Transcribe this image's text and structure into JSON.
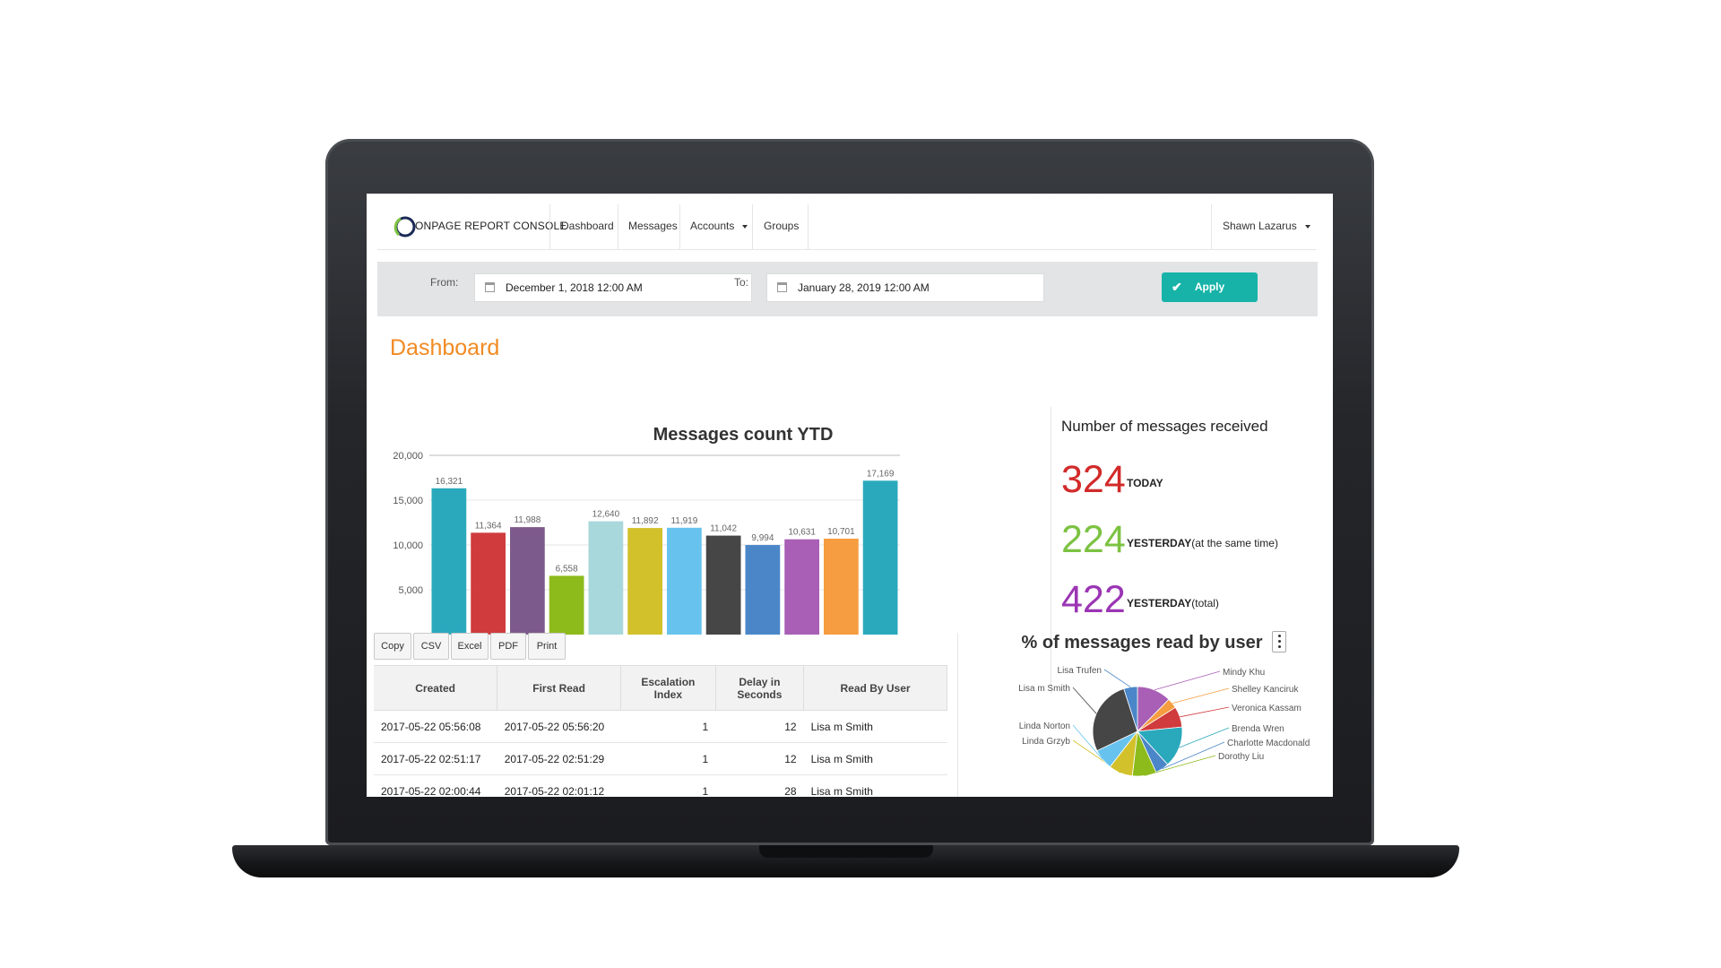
{
  "navbar": {
    "brand": "ONPAGE REPORT CONSOLE",
    "items": [
      "Dashboard",
      "Messages",
      "Accounts",
      "Groups"
    ],
    "user": "Shawn Lazarus"
  },
  "filter": {
    "from_label": "From:",
    "from_value": "December 1, 2018 12:00 AM",
    "to_label": "To:",
    "to_value": "January 28, 2019 12:00 AM",
    "apply_label": "Apply"
  },
  "page_title": "Dashboard",
  "chart_data": [
    {
      "type": "bar",
      "title": "Messages count YTD",
      "ylim": [
        0,
        20000
      ],
      "yticks": [
        "20,000",
        "15,000",
        "10,000",
        "5,000"
      ],
      "ytick_values": [
        20000,
        15000,
        10000,
        5000
      ],
      "values": [
        16321,
        11364,
        11988,
        6558,
        12640,
        11892,
        11919,
        11042,
        9994,
        10631,
        10701,
        17169
      ],
      "value_labels": [
        "16,321",
        "11,364",
        "11,988",
        "6,558",
        "12,640",
        "11,892",
        "11,919",
        "11,042",
        "9,994",
        "10,631",
        "10,701",
        "17,169"
      ],
      "colors": [
        "#2ba9bc",
        "#d03b3d",
        "#7d5a8c",
        "#8dbb1b",
        "#a8d8dc",
        "#d2c12b",
        "#67c3ee",
        "#464646",
        "#4a86c8",
        "#a85fb5",
        "#f59d40",
        "#2ba9bc"
      ],
      "grid": true
    },
    {
      "type": "pie",
      "title": "% of messages read by user",
      "labels": [
        "Mindy Khu",
        "Shelley Kanciruk",
        "Veronica Kassam",
        "Brenda Wren",
        "Charlotte Macdonald",
        "Dorothy Liu",
        "Linda Grzyb",
        "Linda Norton",
        "Lisa m Smith",
        "Lisa Trufen"
      ],
      "values": [
        10,
        3,
        6,
        12,
        4,
        7,
        7,
        6,
        22,
        4
      ],
      "colors": [
        "#a85fb5",
        "#f59d40",
        "#d03b3d",
        "#2ba9bc",
        "#4a86c8",
        "#8dbb1b",
        "#d2c12b",
        "#67c3ee",
        "#464646",
        "#4a86c8"
      ]
    }
  ],
  "stats": {
    "title": "Number of messages received",
    "today_value": "324",
    "today_label": "TODAY",
    "yesterday_value": "224",
    "yesterday_label": "YESTERDAY",
    "yesterday_suffix": "(at the same time)",
    "total_value": "422",
    "total_label": "YESTERDAY",
    "total_suffix": "(total)",
    "colors": {
      "today": "#d22a2a",
      "yesterday": "#7cc242",
      "total": "#9b35b4"
    }
  },
  "export_buttons": [
    "Copy",
    "CSV",
    "Excel",
    "PDF",
    "Print"
  ],
  "table": {
    "headers": [
      "Created",
      "First Read",
      "Escalation Index",
      "Delay in Seconds",
      "Read By User"
    ],
    "header_lines": [
      [
        "Created"
      ],
      [
        "First Read"
      ],
      [
        "Escalation",
        "Index"
      ],
      [
        "Delay in",
        "Seconds"
      ],
      [
        "Read By User"
      ]
    ],
    "rows": [
      [
        "2017-05-22 05:56:08",
        "2017-05-22 05:56:20",
        "1",
        "12",
        "Lisa m Smith"
      ],
      [
        "2017-05-22 02:51:17",
        "2017-05-22 02:51:29",
        "1",
        "12",
        "Lisa m Smith"
      ],
      [
        "2017-05-22 02:00:44",
        "2017-05-22 02:01:12",
        "1",
        "28",
        "Lisa m Smith"
      ]
    ]
  }
}
